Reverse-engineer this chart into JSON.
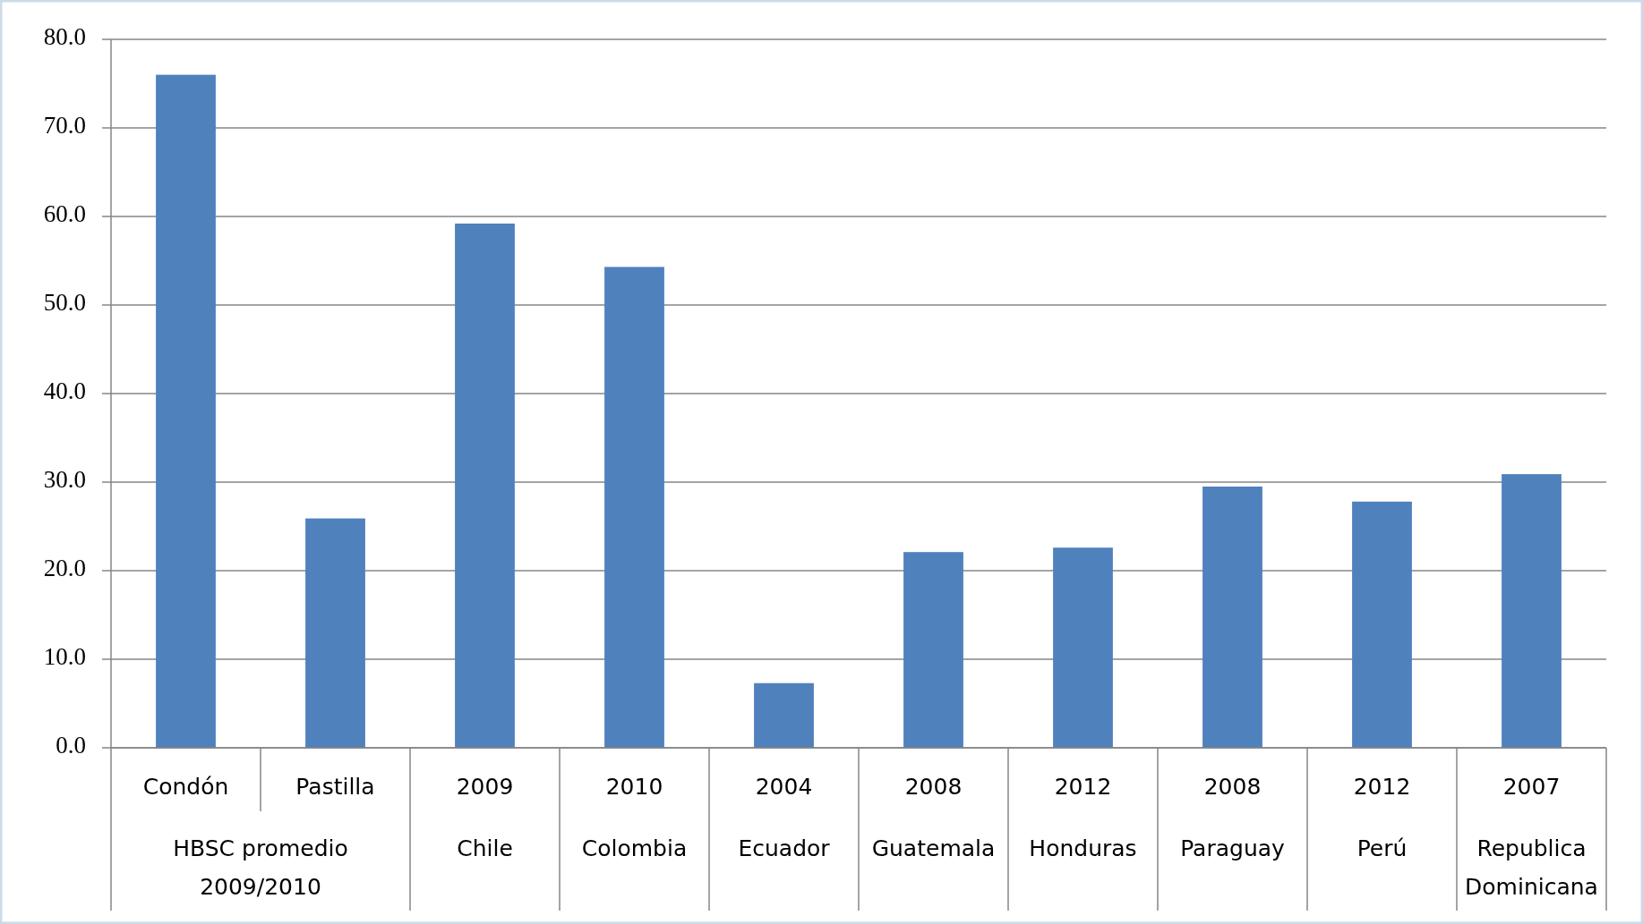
{
  "chart_data": {
    "type": "bar",
    "categories": [
      "Condón",
      "Pastilla",
      "2009",
      "2010",
      "2004",
      "2008",
      "2012",
      "2008",
      "2012",
      "2007"
    ],
    "values": [
      76.0,
      25.9,
      59.2,
      54.3,
      7.3,
      22.1,
      22.6,
      29.5,
      27.8,
      30.9
    ],
    "color": "#4f81bd",
    "ylim": [
      0,
      80
    ],
    "yticks": [
      {
        "value": 0,
        "label": "0.0"
      },
      {
        "value": 10,
        "label": "10.0"
      },
      {
        "value": 20,
        "label": "20.0"
      },
      {
        "value": 30,
        "label": "30.0"
      },
      {
        "value": 40,
        "label": "40.0"
      },
      {
        "value": 50,
        "label": "50.0"
      },
      {
        "value": 60,
        "label": "60.0"
      },
      {
        "value": 70,
        "label": "70.0"
      },
      {
        "value": 80,
        "label": "80.0"
      }
    ],
    "grid": "y",
    "annotations": [
      "HBSC promedio 2009/2010",
      "Chile",
      "Colombia",
      "Ecuador",
      "Guatemala",
      "Honduras",
      "Paraguay",
      "Perú",
      "Republica Dominicana"
    ]
  }
}
